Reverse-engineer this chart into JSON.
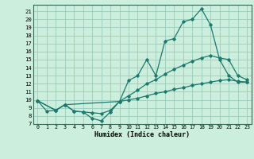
{
  "xlabel": "Humidex (Indice chaleur)",
  "bg_color": "#cceedd",
  "grid_color": "#99ccbb",
  "line_color": "#1a7a6e",
  "xlim": [
    -0.5,
    23.5
  ],
  "ylim": [
    7,
    21.8
  ],
  "xticks": [
    0,
    1,
    2,
    3,
    4,
    5,
    6,
    7,
    8,
    9,
    10,
    11,
    12,
    13,
    14,
    15,
    16,
    17,
    18,
    19,
    20,
    21,
    22,
    23
  ],
  "yticks": [
    7,
    8,
    9,
    10,
    11,
    12,
    13,
    14,
    15,
    16,
    17,
    18,
    19,
    20,
    21
  ],
  "series1_x": [
    0,
    1,
    2,
    3,
    4,
    5,
    6,
    7,
    8,
    9,
    10,
    11,
    12,
    13,
    14,
    15,
    16,
    17,
    18,
    19,
    20,
    21,
    22,
    23
  ],
  "series1_y": [
    9.9,
    8.6,
    8.7,
    9.4,
    8.6,
    8.5,
    7.7,
    7.4,
    8.5,
    9.8,
    12.4,
    13.0,
    15.0,
    13.0,
    17.3,
    17.6,
    19.7,
    20.0,
    21.3,
    19.3,
    15.0,
    13.0,
    12.2,
    12.2
  ],
  "series2_x": [
    0,
    2,
    3,
    4,
    5,
    6,
    7,
    8,
    9,
    10,
    11,
    12,
    13,
    14,
    15,
    16,
    17,
    18,
    19,
    20,
    21,
    22,
    23
  ],
  "series2_y": [
    9.9,
    8.7,
    9.4,
    8.6,
    8.5,
    8.4,
    8.3,
    8.7,
    9.8,
    10.5,
    11.2,
    12.0,
    12.5,
    13.2,
    13.8,
    14.3,
    14.8,
    15.2,
    15.5,
    15.2,
    15.0,
    13.0,
    12.5
  ],
  "series3_x": [
    0,
    2,
    3,
    9,
    10,
    11,
    12,
    13,
    14,
    15,
    16,
    17,
    18,
    19,
    20,
    21,
    22,
    23
  ],
  "series3_y": [
    9.9,
    8.7,
    9.4,
    9.8,
    10.0,
    10.2,
    10.5,
    10.8,
    11.0,
    11.3,
    11.5,
    11.8,
    12.0,
    12.2,
    12.4,
    12.5,
    12.3,
    12.2
  ]
}
